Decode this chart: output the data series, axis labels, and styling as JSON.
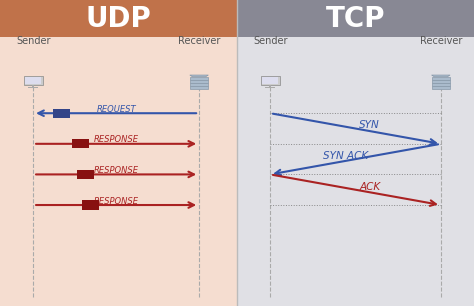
{
  "udp_bg": "#f5ddd0",
  "tcp_bg": "#e0e0e5",
  "udp_header_bg": "#c0724a",
  "tcp_header_bg": "#888894",
  "udp_title": "UDP",
  "tcp_title": "TCP",
  "sender_label": "Sender",
  "receiver_label": "Receiver",
  "header_text_color": "#ffffff",
  "label_text_color": "#555555",
  "arrow_blue": "#3355aa",
  "arrow_red": "#aa2222",
  "packet_blue": "#334488",
  "packet_red": "#881111",
  "udp_request_label": "REQUEST",
  "udp_responses": [
    "RESPONSE",
    "RESPONSE",
    "RESPONSE"
  ],
  "tcp_labels": [
    "SYN",
    "SYN ACK",
    "ACK"
  ],
  "divider_color": "#bbbbbb",
  "fig_width": 4.74,
  "fig_height": 3.06,
  "dpi": 100
}
